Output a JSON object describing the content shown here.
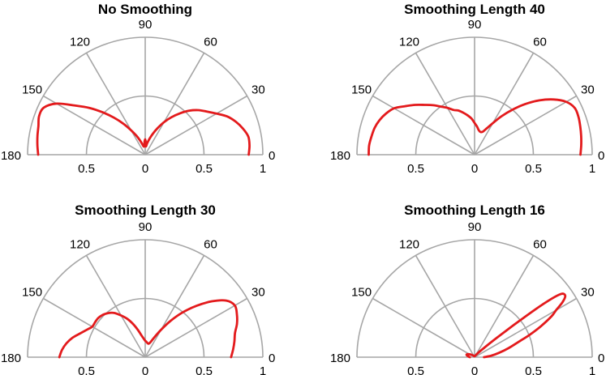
{
  "chart_data": [
    {
      "type": "polar",
      "title": "No Smoothing",
      "angle_ticks": [
        "0",
        "30",
        "60",
        "90",
        "120",
        "150",
        "180"
      ],
      "radius_ticks": [
        "0.5",
        "0",
        "0.5",
        "1"
      ],
      "rlim": [
        0,
        1
      ],
      "theta_range_deg": [
        0,
        180
      ],
      "grid": true,
      "series": [
        {
          "color": "#e31a1c",
          "theta_deg": [
            0,
            5,
            10,
            15,
            20,
            25,
            30,
            35,
            40,
            45,
            50,
            55,
            60,
            65,
            70,
            75,
            80,
            85,
            87,
            90,
            93,
            95,
            100,
            105,
            110,
            115,
            120,
            125,
            130,
            135,
            140,
            145,
            150,
            155,
            160,
            165,
            170,
            175,
            180
          ],
          "r": [
            0.88,
            0.89,
            0.89,
            0.86,
            0.82,
            0.77,
            0.7,
            0.64,
            0.59,
            0.53,
            0.46,
            0.39,
            0.32,
            0.25,
            0.19,
            0.14,
            0.1,
            0.07,
            0.1,
            0.13,
            0.11,
            0.08,
            0.07,
            0.09,
            0.13,
            0.18,
            0.24,
            0.32,
            0.41,
            0.51,
            0.62,
            0.73,
            0.87,
            0.95,
            0.96,
            0.94,
            0.93,
            0.92,
            0.91
          ]
        }
      ]
    },
    {
      "type": "polar",
      "title": "Smoothing Length 40",
      "angle_ticks": [
        "0",
        "30",
        "60",
        "90",
        "120",
        "150",
        "180"
      ],
      "radius_ticks": [
        "0.5",
        "0",
        "0.5",
        "1"
      ],
      "rlim": [
        0,
        1
      ],
      "theta_range_deg": [
        0,
        180
      ],
      "grid": true,
      "series": [
        {
          "color": "#e31a1c",
          "theta_deg": [
            0,
            5,
            10,
            15,
            20,
            25,
            30,
            35,
            40,
            45,
            50,
            55,
            60,
            65,
            70,
            75,
            80,
            85,
            90,
            95,
            100,
            105,
            110,
            115,
            120,
            125,
            130,
            135,
            140,
            145,
            150,
            155,
            160,
            165,
            170,
            175,
            180
          ],
          "r": [
            0.9,
            0.91,
            0.92,
            0.93,
            0.94,
            0.94,
            0.9,
            0.82,
            0.72,
            0.61,
            0.5,
            0.4,
            0.31,
            0.25,
            0.21,
            0.2,
            0.21,
            0.24,
            0.27,
            0.31,
            0.34,
            0.37,
            0.4,
            0.42,
            0.46,
            0.5,
            0.55,
            0.6,
            0.66,
            0.72,
            0.79,
            0.83,
            0.86,
            0.88,
            0.89,
            0.9,
            0.9
          ]
        }
      ]
    },
    {
      "type": "polar",
      "title": "Smoothing Length 30",
      "angle_ticks": [
        "0",
        "30",
        "60",
        "90",
        "120",
        "150",
        "180"
      ],
      "radius_ticks": [
        "0.5",
        "0",
        "0.5",
        "1"
      ],
      "rlim": [
        0,
        1
      ],
      "theta_range_deg": [
        0,
        180
      ],
      "grid": true,
      "series": [
        {
          "color": "#e31a1c",
          "theta_deg": [
            0,
            5,
            10,
            15,
            20,
            25,
            30,
            35,
            40,
            45,
            50,
            55,
            60,
            65,
            70,
            75,
            80,
            85,
            90,
            95,
            100,
            105,
            110,
            115,
            120,
            125,
            130,
            135,
            140,
            145,
            150,
            155,
            160,
            165,
            170,
            175,
            180
          ],
          "r": [
            0.73,
            0.75,
            0.77,
            0.79,
            0.83,
            0.86,
            0.88,
            0.84,
            0.74,
            0.62,
            0.5,
            0.38,
            0.27,
            0.19,
            0.14,
            0.12,
            0.12,
            0.13,
            0.14,
            0.16,
            0.19,
            0.24,
            0.3,
            0.36,
            0.41,
            0.46,
            0.49,
            0.51,
            0.52,
            0.52,
            0.52,
            0.55,
            0.59,
            0.64,
            0.68,
            0.71,
            0.73
          ]
        }
      ]
    },
    {
      "type": "polar",
      "title": "Smoothing Length 16",
      "angle_ticks": [
        "0",
        "30",
        "60",
        "90",
        "120",
        "150",
        "180"
      ],
      "radius_ticks": [
        "0.5",
        "0",
        "0.5",
        "1"
      ],
      "rlim": [
        0,
        1
      ],
      "theta_range_deg": [
        0,
        180
      ],
      "grid": true,
      "series": [
        {
          "color": "#e31a1c",
          "theta_deg": [
            0,
            5,
            10,
            15,
            20,
            22,
            25,
            28,
            30,
            32,
            34,
            36,
            37,
            38,
            39,
            40,
            42,
            45,
            50,
            60,
            70,
            80,
            90,
            100,
            110,
            120,
            130,
            140,
            150,
            155,
            160,
            165,
            170,
            175,
            180
          ],
          "r": [
            0.08,
            0.14,
            0.21,
            0.3,
            0.42,
            0.5,
            0.62,
            0.74,
            0.8,
            0.88,
            0.93,
            0.92,
            0.85,
            0.7,
            0.5,
            0.35,
            0.2,
            0.1,
            0.05,
            0.02,
            0.01,
            0.01,
            0.01,
            0.01,
            0.01,
            0.01,
            0.02,
            0.03,
            0.05,
            0.06,
            0.07,
            0.07,
            0.06,
            0.05,
            0.04
          ]
        }
      ]
    }
  ]
}
